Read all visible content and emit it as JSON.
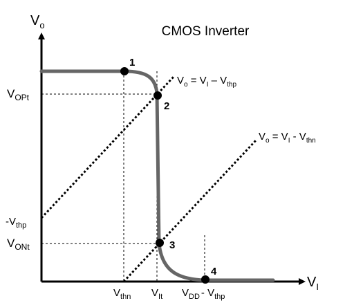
{
  "diagram": {
    "title": "CMOS Inverter",
    "y_axis": {
      "base": "V",
      "sub": "o"
    },
    "x_axis": {
      "base": "V",
      "sub": "I"
    },
    "load_lines": {
      "pmos": {
        "p1": "V",
        "s1": "o",
        "p2": " = V",
        "s2": "I",
        "p3": " – V",
        "s3": "thp"
      },
      "nmos": {
        "p1": "V",
        "s1": "o",
        "p2": " = V",
        "s2": "I",
        "p3": " - V",
        "s3": "thn"
      }
    },
    "y_ticks": {
      "vopt": {
        "base": "V",
        "sub": "OPt"
      },
      "vthp": {
        "base": "-V",
        "sub": "thp"
      },
      "vont": {
        "base": "V",
        "sub": "ONt"
      }
    },
    "x_ticks": {
      "vthn": {
        "base": "V",
        "sub": "thn"
      },
      "vit": {
        "base": "V",
        "sub": "It"
      },
      "vdd": {
        "p1": "V",
        "s1": "DD",
        "p2": "- V",
        "s2": "thp"
      }
    },
    "points": [
      "1",
      "2",
      "3",
      "4"
    ],
    "colors": {
      "curve": "#666666",
      "axis": "#000000",
      "point": "#000000"
    }
  }
}
